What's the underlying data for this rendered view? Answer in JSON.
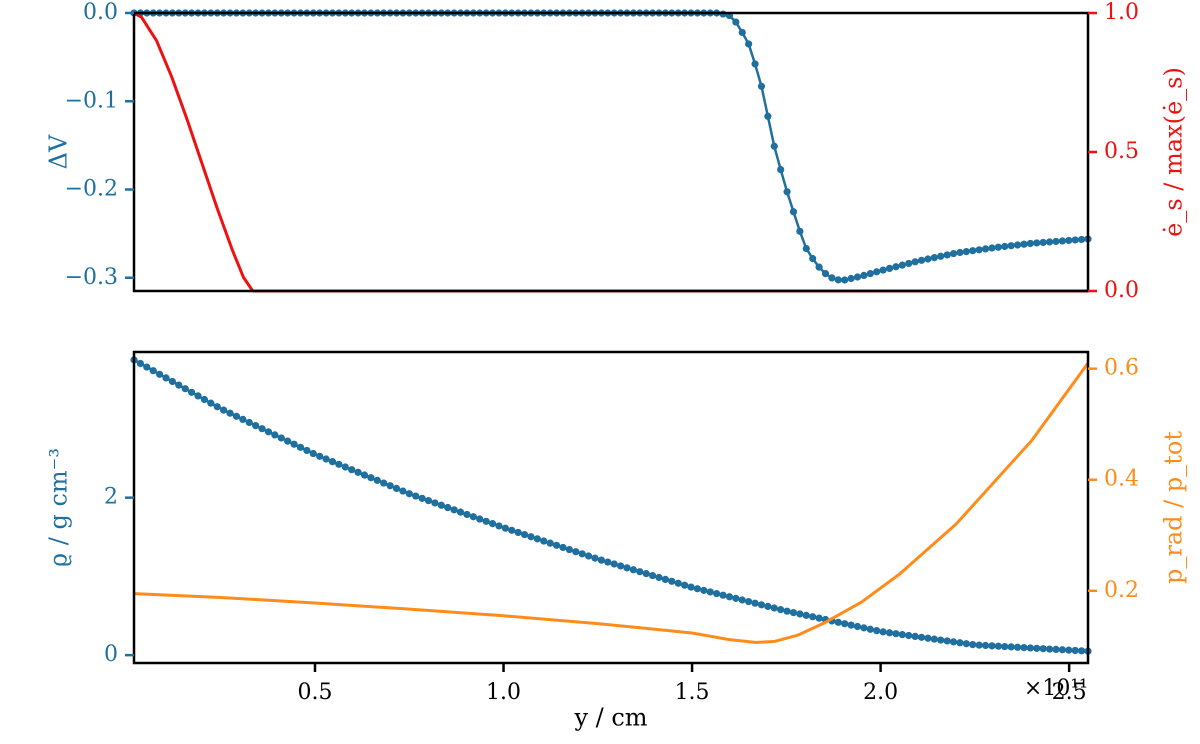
{
  "colors": {
    "blue": "#1f6f9f",
    "red": "#ee1111",
    "orange": "#ff8c1a",
    "axes": "#000000"
  },
  "chart_data": [
    {
      "type": "line",
      "panel": "top",
      "xlim": [
        0.02,
        2.55
      ],
      "ylim_left": [
        -0.315,
        0.0
      ],
      "ylim_right": [
        0.0,
        1.0
      ],
      "yticks_left": [
        0.0,
        -0.1,
        -0.2,
        -0.3
      ],
      "ytick_labels_left": [
        "0.0",
        "−0.1",
        "−0.2",
        "−0.3"
      ],
      "yticks_right": [
        0.0,
        0.5,
        1.0
      ],
      "ytick_labels_right": [
        "0.0",
        "0.5",
        "1.0"
      ],
      "ylabel_left": "ΔV",
      "ylabel_right": "ė_s / max(ė_s)",
      "grid": false,
      "series": [
        {
          "axis": "left",
          "color": "blue",
          "markers": true,
          "n_points": 150,
          "x": [
            0.02,
            1.57,
            1.6,
            1.62,
            1.65,
            1.68,
            1.7,
            1.72,
            1.75,
            1.78,
            1.8,
            1.83,
            1.86,
            1.88,
            1.9,
            1.95,
            2.0,
            2.1,
            2.2,
            2.3,
            2.4,
            2.55
          ],
          "y": [
            0.0,
            0.0,
            -0.003,
            -0.012,
            -0.035,
            -0.075,
            -0.115,
            -0.155,
            -0.2,
            -0.24,
            -0.265,
            -0.285,
            -0.298,
            -0.302,
            -0.303,
            -0.298,
            -0.292,
            -0.281,
            -0.272,
            -0.266,
            -0.261,
            -0.256
          ]
        },
        {
          "axis": "right",
          "color": "red",
          "markers": false,
          "x": [
            0.02,
            0.04,
            0.08,
            0.12,
            0.16,
            0.2,
            0.24,
            0.28,
            0.31,
            0.335,
            2.55
          ],
          "y": [
            1.0,
            0.985,
            0.9,
            0.77,
            0.62,
            0.46,
            0.3,
            0.15,
            0.05,
            0.0,
            0.0
          ]
        }
      ]
    },
    {
      "type": "line",
      "panel": "bottom",
      "xlim": [
        0.02,
        2.55
      ],
      "ylim_left": [
        -0.1,
        3.85
      ],
      "ylim_right": [
        0.07,
        0.63
      ],
      "yticks_left": [
        0,
        2
      ],
      "ytick_labels_left": [
        "0",
        "2"
      ],
      "yticks_right": [
        0.2,
        0.4,
        0.6
      ],
      "ytick_labels_right": [
        "0.2",
        "0.4",
        "0.6"
      ],
      "xticks": [
        0.5,
        1.0,
        1.5,
        2.0,
        2.5
      ],
      "xtick_labels": [
        "0.5",
        "1.0",
        "1.5",
        "2.0",
        "2.5"
      ],
      "xlabel": "y / cm",
      "x_offset_label": "×10¹¹",
      "ylabel_left": "ϱ / g cm⁻³",
      "ylabel_right": "p_rad / p_tot",
      "grid": false,
      "series": [
        {
          "axis": "left",
          "color": "blue",
          "markers": true,
          "n_points": 150,
          "x": [
            0.02,
            0.25,
            0.5,
            0.75,
            1.0,
            1.25,
            1.5,
            1.75,
            2.0,
            2.25,
            2.55
          ],
          "y": [
            3.75,
            3.13,
            2.55,
            2.05,
            1.62,
            1.22,
            0.86,
            0.56,
            0.3,
            0.13,
            0.05
          ]
        },
        {
          "axis": "right",
          "color": "orange",
          "markers": false,
          "x": [
            0.02,
            0.25,
            0.5,
            0.75,
            1.0,
            1.25,
            1.5,
            1.6,
            1.67,
            1.72,
            1.78,
            1.85,
            1.95,
            2.05,
            2.2,
            2.4,
            2.55
          ],
          "y": [
            0.195,
            0.188,
            0.178,
            0.167,
            0.155,
            0.141,
            0.124,
            0.112,
            0.107,
            0.109,
            0.12,
            0.142,
            0.18,
            0.23,
            0.32,
            0.47,
            0.61
          ]
        }
      ]
    }
  ]
}
